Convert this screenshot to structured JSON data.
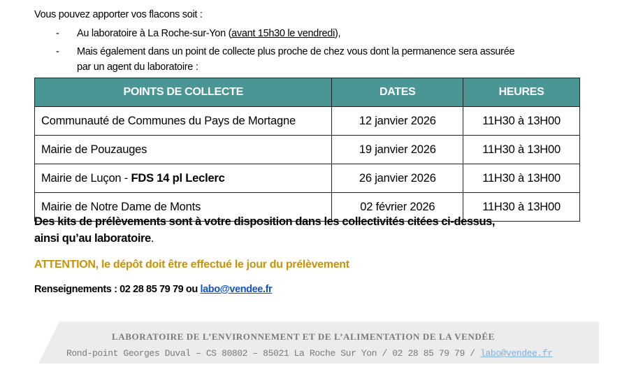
{
  "intro": "Vous pouvez apporter vos flacons soit :",
  "bullets": [
    {
      "marker": "-",
      "text_before": "Au laboratoire à La Roche-sur-Yon (",
      "underlined": "avant 15h30 le vendredi",
      "text_after": "),"
    },
    {
      "marker": "-",
      "line1": "Mais également dans un point de collecte plus proche de chez vous dont la permanence sera assurée",
      "line2": "par un agent du laboratoire :"
    }
  ],
  "table": {
    "header_color": "#4a9695",
    "headers": [
      "POINTS DE COLLECTE",
      "DATES",
      "HEURES"
    ],
    "rows": [
      {
        "place": "Communauté de Communes du Pays de Mortagne",
        "place_bold": "",
        "date": "12 janvier 2026",
        "hours": "11H30 à 13H00"
      },
      {
        "place": "Mairie de Pouzauges",
        "place_bold": "",
        "date": "19 janvier 2026",
        "hours": "11H30 à 13H00"
      },
      {
        "place": "Mairie de Luçon - ",
        "place_bold": "FDS 14 pl Leclerc",
        "date": "26 janvier 2026",
        "hours": "11H30 à 13H00"
      },
      {
        "place": "Mairie de Notre Dame de Monts",
        "place_bold": "",
        "date": "02 février 2026",
        "hours": "11H30 à 13H00"
      }
    ]
  },
  "kits_line1": "Des kits de prélèvements sont à votre disposition dans les collectivités citées ci-dessus,",
  "kits_line2": "ainsi qu’au laboratoire",
  "kits_end": ".",
  "attention": "ATTENTION, le dépôt doit être effectué le jour du prélèvement",
  "attention_color": "#c6930a",
  "renseignements": "Renseignements : 02 28 85 79 79 ou ",
  "email": "labo@vendee.fr",
  "footer": {
    "title": "LABORATOIRE DE L’ENVIRONNEMENT ET DE L’ALIMENTATION DE LA VENDÉE",
    "address": "Rond-point Georges Duval – CS 80802 – 85021 La Roche Sur Yon / 02 28 85 79 79 / ",
    "email": "labo@vendee.fr"
  }
}
